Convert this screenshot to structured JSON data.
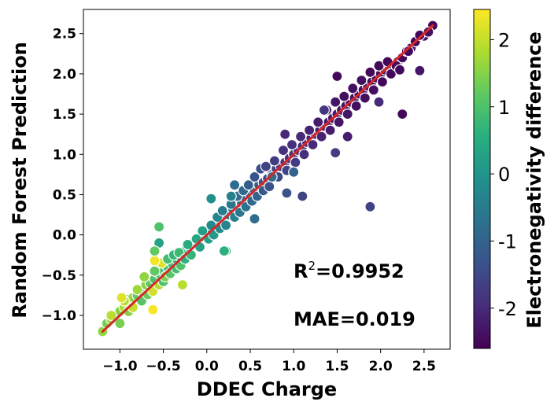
{
  "chart_data": {
    "type": "scatter",
    "xlabel": "DDEC Charge",
    "ylabel": "Random Forest Prediction",
    "colorbar_label": "Electronegativity difference",
    "xlim": [
      -1.42,
      2.8
    ],
    "ylim": [
      -1.42,
      2.8
    ],
    "x_ticks": [
      {
        "value": -1.0,
        "label": "−1.0"
      },
      {
        "value": -0.5,
        "label": "−0.5"
      },
      {
        "value": 0.0,
        "label": "0.0"
      },
      {
        "value": 0.5,
        "label": "0.5"
      },
      {
        "value": 1.0,
        "label": "1.0"
      },
      {
        "value": 1.5,
        "label": "1.5"
      },
      {
        "value": 2.0,
        "label": "2.0"
      },
      {
        "value": 2.5,
        "label": "2.5"
      }
    ],
    "y_ticks": [
      {
        "value": -1.0,
        "label": "−1.0"
      },
      {
        "value": -0.5,
        "label": "−0.5"
      },
      {
        "value": 0.0,
        "label": "0.0"
      },
      {
        "value": 0.5,
        "label": "0.5"
      },
      {
        "value": 1.0,
        "label": "1.0"
      },
      {
        "value": 1.5,
        "label": "1.5"
      },
      {
        "value": 2.0,
        "label": "2.0"
      },
      {
        "value": 2.5,
        "label": "2.5"
      }
    ],
    "colorbar": {
      "colormap": "viridis",
      "range": [
        -2.6,
        2.45
      ],
      "ticks": [
        {
          "value": 2,
          "label": "2"
        },
        {
          "value": 1,
          "label": "1"
        },
        {
          "value": 0,
          "label": "0"
        },
        {
          "value": -1,
          "label": "-1"
        },
        {
          "value": -2,
          "label": "-2"
        }
      ]
    },
    "fit_line": {
      "x": [
        -1.2,
        2.6
      ],
      "y": [
        -1.2,
        2.6
      ],
      "color": "#d62728"
    },
    "annotations": {
      "r2_prefix": "R",
      "r2_sup": "2",
      "r2_value": "=0.9952",
      "mae": "MAE=0.019"
    },
    "points": [
      [
        -1.2,
        -1.2,
        1.6
      ],
      [
        -1.15,
        -1.1,
        1.4
      ],
      [
        -1.1,
        -1.05,
        1.7
      ],
      [
        -1.05,
        -1.0,
        1.3
      ],
      [
        -1.0,
        -0.95,
        1.5
      ],
      [
        -0.95,
        -0.9,
        1.8
      ],
      [
        -0.9,
        -0.8,
        1.4
      ],
      [
        -0.85,
        -0.78,
        1.6
      ],
      [
        -0.8,
        -0.75,
        1.2
      ],
      [
        -0.75,
        -0.7,
        1.3
      ],
      [
        -0.7,
        -0.62,
        1.5
      ],
      [
        -0.65,
        -0.6,
        1.2
      ],
      [
        -0.6,
        -0.55,
        1.0
      ],
      [
        -0.55,
        -0.48,
        1.1
      ],
      [
        -0.5,
        -0.45,
        0.9
      ],
      [
        -0.45,
        -0.4,
        1.0
      ],
      [
        -0.4,
        -0.35,
        0.8
      ],
      [
        -0.35,
        -0.3,
        0.7
      ],
      [
        -0.3,
        -0.28,
        0.6
      ],
      [
        -0.25,
        -0.2,
        0.5
      ],
      [
        -0.2,
        -0.15,
        0.4
      ],
      [
        -0.15,
        -0.1,
        0.3
      ],
      [
        -0.1,
        -0.08,
        0.2
      ],
      [
        -0.05,
        -0.02,
        0.1
      ],
      [
        0.0,
        0.02,
        0.0
      ],
      [
        0.05,
        0.05,
        -0.1
      ],
      [
        0.1,
        0.1,
        -0.2
      ],
      [
        0.15,
        0.15,
        -0.3
      ],
      [
        0.2,
        0.2,
        -0.4
      ],
      [
        0.25,
        0.25,
        -0.5
      ],
      [
        0.3,
        0.32,
        -0.6
      ],
      [
        0.35,
        0.35,
        -0.7
      ],
      [
        0.4,
        0.4,
        -0.8
      ],
      [
        0.45,
        0.45,
        -0.9
      ],
      [
        0.5,
        0.5,
        -1.0
      ],
      [
        0.55,
        0.55,
        -1.1
      ],
      [
        0.6,
        0.62,
        -1.2
      ],
      [
        0.65,
        0.65,
        -1.3
      ],
      [
        0.7,
        0.7,
        -1.4
      ],
      [
        0.75,
        0.75,
        -1.5
      ],
      [
        0.8,
        0.82,
        -1.6
      ],
      [
        0.85,
        0.85,
        -1.7
      ],
      [
        0.9,
        0.9,
        -1.8
      ],
      [
        0.95,
        0.95,
        -1.9
      ],
      [
        1.0,
        1.0,
        -1.8
      ],
      [
        1.05,
        1.05,
        -1.9
      ],
      [
        1.1,
        1.1,
        -2.0
      ],
      [
        1.15,
        1.15,
        -2.0
      ],
      [
        1.2,
        1.2,
        -2.1
      ],
      [
        1.25,
        1.25,
        -2.1
      ],
      [
        1.3,
        1.3,
        -2.2
      ],
      [
        1.35,
        1.35,
        -2.1
      ],
      [
        1.4,
        1.4,
        -2.2
      ],
      [
        1.45,
        1.45,
        -2.3
      ],
      [
        1.5,
        1.5,
        -2.2
      ],
      [
        1.55,
        1.55,
        -2.3
      ],
      [
        1.6,
        1.6,
        -2.3
      ],
      [
        1.65,
        1.65,
        -2.4
      ],
      [
        1.7,
        1.7,
        -2.3
      ],
      [
        1.75,
        1.75,
        -2.4
      ],
      [
        1.8,
        1.8,
        -2.4
      ],
      [
        1.85,
        1.85,
        -2.3
      ],
      [
        1.9,
        1.9,
        -2.4
      ],
      [
        1.95,
        1.95,
        -2.5
      ],
      [
        2.0,
        2.0,
        -2.4
      ],
      [
        2.05,
        2.05,
        -2.4
      ],
      [
        2.1,
        2.1,
        -2.5
      ],
      [
        2.15,
        2.1,
        -2.5
      ],
      [
        2.2,
        2.15,
        -2.4
      ],
      [
        2.25,
        2.2,
        -2.5
      ],
      [
        2.3,
        2.28,
        -2.5
      ],
      [
        2.35,
        2.32,
        -2.4
      ],
      [
        2.4,
        2.4,
        -2.5
      ],
      [
        2.5,
        2.47,
        -2.4
      ],
      [
        2.6,
        2.6,
        -2.5
      ],
      [
        -1.1,
        -1.0,
        1.9
      ],
      [
        -1.0,
        -1.1,
        1.4
      ],
      [
        -0.95,
        -0.82,
        1.9
      ],
      [
        -0.9,
        -0.95,
        1.5
      ],
      [
        -0.85,
        -0.9,
        2.0
      ],
      [
        -0.8,
        -0.68,
        1.7
      ],
      [
        -0.75,
        -0.82,
        1.1
      ],
      [
        -0.72,
        -0.52,
        1.6
      ],
      [
        -0.68,
        -0.74,
        1.3
      ],
      [
        -0.6,
        -0.45,
        1.2
      ],
      [
        -0.62,
        -0.7,
        2.1
      ],
      [
        -0.55,
        -0.62,
        1.9
      ],
      [
        -0.52,
        -0.35,
        2.2
      ],
      [
        -0.5,
        -0.58,
        1.0
      ],
      [
        -0.48,
        -0.52,
        1.4
      ],
      [
        -0.45,
        -0.3,
        0.9
      ],
      [
        -0.42,
        -0.48,
        1.1
      ],
      [
        -0.38,
        -0.25,
        0.7
      ],
      [
        -0.35,
        -0.42,
        0.9
      ],
      [
        -0.32,
        -0.22,
        0.8
      ],
      [
        -0.3,
        -0.38,
        1.0
      ],
      [
        -0.25,
        -0.3,
        0.6
      ],
      [
        -0.22,
        -0.12,
        0.5
      ],
      [
        -0.18,
        -0.25,
        0.7
      ],
      [
        -0.12,
        -0.05,
        0.4
      ],
      [
        -0.08,
        -0.15,
        0.3
      ],
      [
        -0.05,
        0.05,
        0.2
      ],
      [
        0.02,
        -0.05,
        0.3
      ],
      [
        0.05,
        0.12,
        -0.2
      ],
      [
        0.08,
        0.0,
        0.1
      ],
      [
        0.12,
        0.22,
        -0.3
      ],
      [
        0.15,
        0.08,
        -0.2
      ],
      [
        0.18,
        0.3,
        -0.5
      ],
      [
        0.22,
        0.12,
        -0.3
      ],
      [
        0.22,
        -0.2,
        0.6
      ],
      [
        0.28,
        0.38,
        -0.6
      ],
      [
        0.32,
        0.22,
        -0.4
      ],
      [
        0.35,
        0.48,
        -0.8
      ],
      [
        0.38,
        0.28,
        -0.6
      ],
      [
        0.42,
        0.55,
        -0.9
      ],
      [
        0.45,
        0.35,
        -0.7
      ],
      [
        0.48,
        0.62,
        -1.1
      ],
      [
        0.52,
        0.42,
        -0.9
      ],
      [
        0.55,
        0.72,
        -1.3
      ],
      [
        0.58,
        0.48,
        -1.0
      ],
      [
        0.62,
        0.82,
        -1.4
      ],
      [
        0.65,
        0.55,
        -1.2
      ],
      [
        0.68,
        0.85,
        -1.6
      ],
      [
        0.72,
        0.6,
        -1.3
      ],
      [
        0.78,
        0.92,
        -1.7
      ],
      [
        0.82,
        0.72,
        -1.5
      ],
      [
        0.88,
        1.05,
        -1.9
      ],
      [
        0.92,
        0.8,
        -1.6
      ],
      [
        0.98,
        1.12,
        -1.9
      ],
      [
        1.02,
        0.9,
        -1.7
      ],
      [
        1.08,
        1.22,
        -2.0
      ],
      [
        1.12,
        1.0,
        -1.9
      ],
      [
        1.18,
        1.3,
        -2.1
      ],
      [
        1.22,
        1.12,
        -2.0
      ],
      [
        1.28,
        1.4,
        -2.2
      ],
      [
        1.32,
        1.22,
        -2.1
      ],
      [
        1.38,
        1.55,
        -2.2
      ],
      [
        1.42,
        1.3,
        -2.2
      ],
      [
        1.48,
        1.65,
        -2.3
      ],
      [
        1.52,
        1.4,
        -2.3
      ],
      [
        1.58,
        1.72,
        -2.4
      ],
      [
        1.62,
        1.5,
        -2.3
      ],
      [
        1.68,
        1.82,
        -2.4
      ],
      [
        1.72,
        1.6,
        -2.4
      ],
      [
        1.78,
        1.92,
        -2.4
      ],
      [
        1.82,
        1.7,
        -2.4
      ],
      [
        1.88,
        2.02,
        -2.5
      ],
      [
        1.92,
        1.8,
        -2.4
      ],
      [
        1.98,
        2.1,
        -2.5
      ],
      [
        2.02,
        1.9,
        -2.5
      ],
      [
        2.08,
        2.15,
        -2.5
      ],
      [
        2.12,
        2.0,
        -2.5
      ],
      [
        2.18,
        2.1,
        -2.5
      ],
      [
        2.22,
        2.05,
        -2.5
      ],
      [
        2.32,
        2.28,
        -2.5
      ],
      [
        2.45,
        2.48,
        -2.5
      ],
      [
        2.55,
        2.52,
        -2.4
      ],
      [
        -0.55,
        0.1,
        1.0
      ],
      [
        -0.6,
        -0.32,
        2.35
      ],
      [
        -0.55,
        -0.1,
        0.3
      ],
      [
        0.2,
        -0.2,
        0.6
      ],
      [
        0.28,
        0.48,
        -0.4
      ],
      [
        0.32,
        0.62,
        -0.8
      ],
      [
        0.75,
        0.72,
        -0.8
      ],
      [
        0.9,
        1.25,
        -2.0
      ],
      [
        1.1,
        0.48,
        -1.6
      ],
      [
        1.0,
        0.78,
        -1.0
      ],
      [
        0.92,
        0.52,
        -1.3
      ],
      [
        1.5,
        1.97,
        -2.5
      ],
      [
        1.88,
        0.35,
        -1.6
      ],
      [
        1.48,
        1.02,
        -1.7
      ],
      [
        1.98,
        1.65,
        -2.0
      ],
      [
        2.25,
        1.5,
        -2.5
      ],
      [
        2.45,
        2.04,
        -2.3
      ],
      [
        -0.62,
        -0.93,
        2.4
      ],
      [
        -0.28,
        -0.62,
        1.9
      ],
      [
        -0.6,
        -0.2,
        1.2
      ],
      [
        0.05,
        0.45,
        -0.1
      ],
      [
        0.55,
        0.2,
        -0.8
      ],
      [
        1.35,
        1.55,
        -1.8
      ],
      [
        1.62,
        1.22,
        -2.2
      ],
      [
        -0.98,
        -0.78,
        2.2
      ]
    ]
  }
}
